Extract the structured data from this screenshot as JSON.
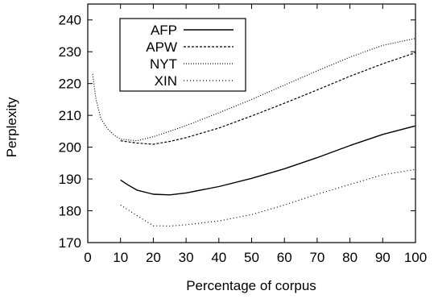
{
  "chart_data": {
    "type": "line",
    "title": "",
    "xlabel": "Percentage of corpus",
    "ylabel": "Perplexity",
    "xlim": [
      0,
      100
    ],
    "ylim": [
      170,
      245
    ],
    "xticks": [
      0,
      10,
      20,
      30,
      40,
      50,
      60,
      70,
      80,
      90,
      100
    ],
    "yticks": [
      170,
      180,
      190,
      200,
      210,
      220,
      230,
      240
    ],
    "grid": false,
    "legend_position": "top-left",
    "series": [
      {
        "name": "AFP",
        "style": "solid",
        "x": [
          10,
          12,
          15,
          20,
          25,
          30,
          40,
          50,
          60,
          70,
          80,
          90,
          100
        ],
        "y": [
          189.7,
          188.3,
          186.5,
          185.2,
          185.0,
          185.6,
          187.6,
          190.2,
          193.2,
          196.7,
          200.5,
          204.0,
          206.7
        ]
      },
      {
        "name": "APW",
        "style": "dashed",
        "x": [
          10,
          15,
          20,
          25,
          30,
          40,
          50,
          60,
          70,
          80,
          90,
          100
        ],
        "y": [
          202.0,
          201.3,
          200.9,
          201.8,
          203.0,
          206.0,
          209.8,
          213.8,
          218.0,
          222.3,
          226.2,
          229.7
        ]
      },
      {
        "name": "NYT",
        "style": "dotted",
        "x": [
          1.5,
          2.5,
          4,
          6,
          8,
          10,
          15,
          20,
          25,
          30,
          40,
          50,
          60,
          70,
          80,
          90,
          100
        ],
        "y": [
          223.0,
          215.0,
          209.0,
          205.8,
          203.8,
          202.5,
          202.0,
          203.3,
          205.0,
          206.8,
          210.8,
          215.0,
          219.5,
          224.0,
          228.3,
          232.0,
          234.2
        ]
      },
      {
        "name": "XIN",
        "style": "sparse-dotted",
        "x": [
          10,
          15,
          20,
          25,
          30,
          40,
          50,
          60,
          70,
          80,
          90,
          100
        ],
        "y": [
          181.8,
          178.5,
          175.3,
          175.2,
          175.6,
          176.8,
          178.8,
          181.8,
          185.2,
          188.3,
          191.3,
          193.0
        ]
      }
    ]
  }
}
